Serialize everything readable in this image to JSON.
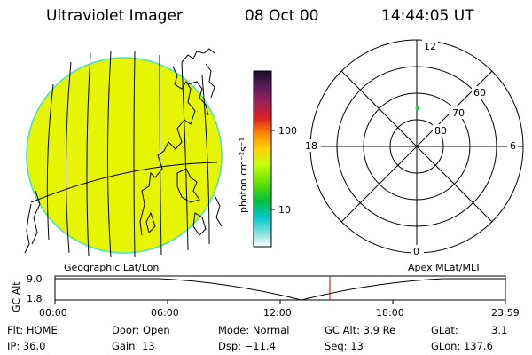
{
  "header": {
    "instrument": "Ultraviolet Imager",
    "date": "08 Oct 00",
    "time": "14:44:05 UT"
  },
  "colorbar": {
    "unit_label": "photon cm⁻²s⁻¹",
    "tick_labels": [
      "100",
      "10"
    ],
    "colors": [
      "#1a0f2e",
      "#5a1a5a",
      "#a0205a",
      "#e02020",
      "#ff8c00",
      "#ffd000",
      "#c8ff00",
      "#60e000",
      "#00c040",
      "#00c8c8",
      "#80e0e0",
      "#ffffff"
    ]
  },
  "polar_plot": {
    "mlt_labels": {
      "top": "12",
      "left": "18",
      "right": "6",
      "bottom": "0"
    },
    "lat_labels": [
      "60",
      "70",
      "80"
    ],
    "marker_color": "#22cc44"
  },
  "timeline": {
    "left_label": "Geographic Lat/Lon",
    "right_label": "Apex MLat/MLT",
    "axis_title": "GC Alt",
    "y_ticks": [
      "9.0",
      "1.8"
    ],
    "x_ticks": [
      "00:00",
      "06:00",
      "12:00",
      "18:00",
      "23:59"
    ],
    "current_time_color": "#cc0000"
  },
  "status": {
    "row1": {
      "flt": "Flt: HOME",
      "door": "Door: Open",
      "mode": "Mode: Normal",
      "gc_alt": "GC Alt: 3.9 Re",
      "glat": "GLat:",
      "glat_val": "3.1"
    },
    "row2": {
      "ip": "IP: 36.0",
      "gain": "Gain: 13",
      "dsp": "Dsp: −11.4",
      "seq": "Seq: 13",
      "glon": "GLon: 137.6"
    }
  },
  "earth_color": "#e6f500",
  "limb_color": "#40e0d0"
}
